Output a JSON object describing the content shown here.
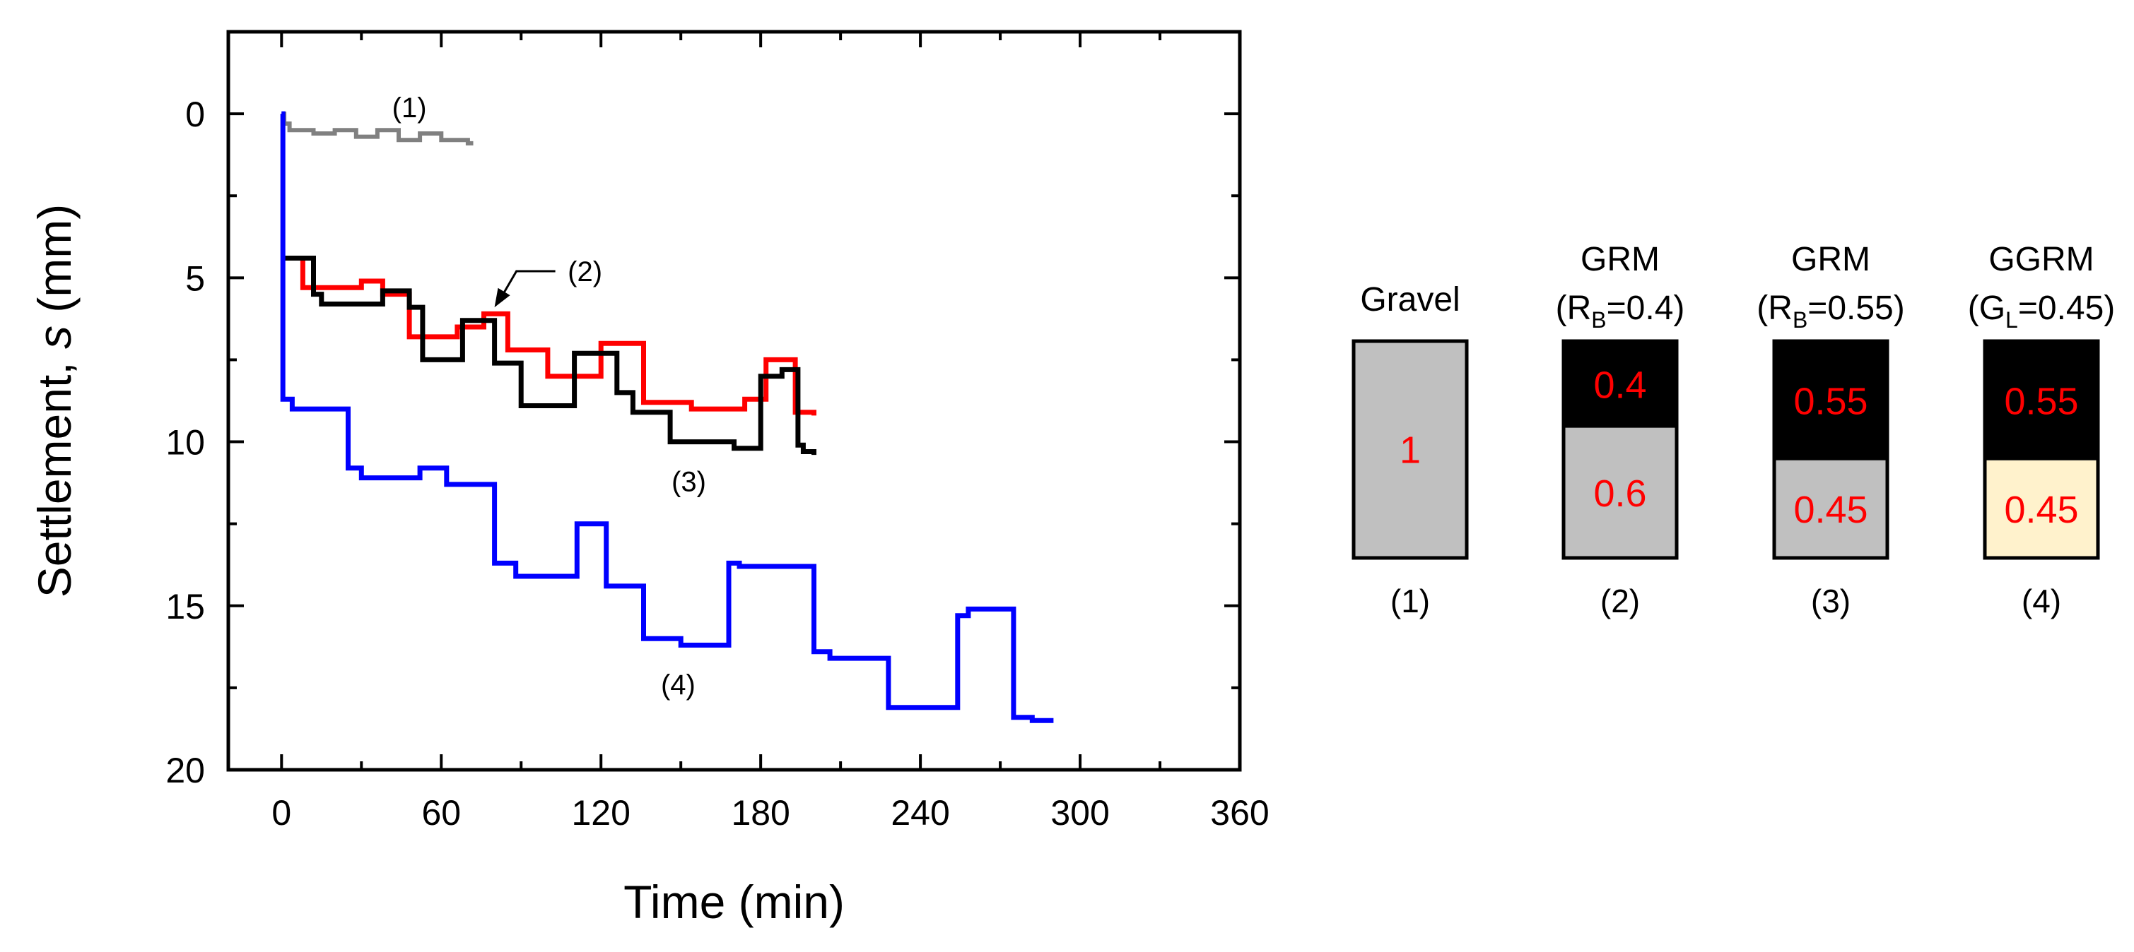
{
  "chart_data": {
    "type": "line",
    "title": "",
    "xlabel": "Time (min)",
    "ylabel": {
      "prefix": "Settlement, ",
      "italic": "s",
      "suffix": " (mm)"
    },
    "xlim": [
      -20,
      360
    ],
    "ylim": [
      -2.5,
      20
    ],
    "y_inverted": true,
    "xticks": [
      0,
      60,
      120,
      180,
      240,
      300,
      360
    ],
    "yticks": [
      0,
      5,
      10,
      15,
      20
    ],
    "series": [
      {
        "name": "(1)",
        "color": "#808080",
        "points": [
          [
            0,
            0
          ],
          [
            1,
            0
          ],
          [
            1,
            0.3
          ],
          [
            3,
            0.3
          ],
          [
            3,
            0.5
          ],
          [
            12,
            0.5
          ],
          [
            12,
            0.6
          ],
          [
            20,
            0.6
          ],
          [
            20,
            0.5
          ],
          [
            28,
            0.5
          ],
          [
            28,
            0.7
          ],
          [
            36,
            0.7
          ],
          [
            36,
            0.5
          ],
          [
            44,
            0.5
          ],
          [
            44,
            0.8
          ],
          [
            52,
            0.8
          ],
          [
            52,
            0.6
          ],
          [
            60,
            0.6
          ],
          [
            60,
            0.8
          ],
          [
            70,
            0.8
          ],
          [
            70,
            0.9
          ],
          [
            72,
            0.9
          ]
        ]
      },
      {
        "name": "(2)",
        "color": "#ff0000",
        "points": [
          [
            0,
            4.4
          ],
          [
            8,
            4.4
          ],
          [
            8,
            5.3
          ],
          [
            30,
            5.3
          ],
          [
            30,
            5.1
          ],
          [
            38,
            5.1
          ],
          [
            38,
            5.5
          ],
          [
            48,
            5.5
          ],
          [
            48,
            6.8
          ],
          [
            66,
            6.8
          ],
          [
            66,
            6.5
          ],
          [
            76,
            6.5
          ],
          [
            76,
            6.1
          ],
          [
            85,
            6.1
          ],
          [
            85,
            7.2
          ],
          [
            100,
            7.2
          ],
          [
            100,
            8.0
          ],
          [
            120,
            8.0
          ],
          [
            120,
            7.0
          ],
          [
            136,
            7.0
          ],
          [
            136,
            8.8
          ],
          [
            154,
            8.8
          ],
          [
            154,
            9.0
          ],
          [
            174,
            9.0
          ],
          [
            174,
            8.7
          ],
          [
            182,
            8.7
          ],
          [
            182,
            7.5
          ],
          [
            193,
            7.5
          ],
          [
            193,
            9.1
          ],
          [
            200,
            9.1
          ],
          [
            200,
            9.2
          ]
        ]
      },
      {
        "name": "(3)",
        "color": "#000000",
        "points": [
          [
            0,
            4.4
          ],
          [
            12,
            4.4
          ],
          [
            12,
            5.5
          ],
          [
            15,
            5.5
          ],
          [
            15,
            5.8
          ],
          [
            38,
            5.8
          ],
          [
            38,
            5.4
          ],
          [
            48,
            5.4
          ],
          [
            48,
            5.9
          ],
          [
            53,
            5.9
          ],
          [
            53,
            7.5
          ],
          [
            68,
            7.5
          ],
          [
            68,
            6.3
          ],
          [
            80,
            6.3
          ],
          [
            80,
            7.6
          ],
          [
            90,
            7.6
          ],
          [
            90,
            8.9
          ],
          [
            110,
            8.9
          ],
          [
            110,
            7.3
          ],
          [
            126,
            7.3
          ],
          [
            126,
            8.5
          ],
          [
            132,
            8.5
          ],
          [
            132,
            9.1
          ],
          [
            146,
            9.1
          ],
          [
            146,
            10.0
          ],
          [
            170,
            10.0
          ],
          [
            170,
            10.2
          ],
          [
            180,
            10.2
          ],
          [
            180,
            8.0
          ],
          [
            188,
            8.0
          ],
          [
            188,
            7.8
          ],
          [
            194,
            7.8
          ],
          [
            194,
            10.1
          ],
          [
            196,
            10.1
          ],
          [
            196,
            10.3
          ],
          [
            200,
            10.3
          ],
          [
            200,
            10.4
          ]
        ]
      },
      {
        "name": "(4)",
        "color": "#0000ff",
        "points": [
          [
            0,
            0
          ],
          [
            0.5,
            0
          ],
          [
            0.5,
            8.7
          ],
          [
            4,
            8.7
          ],
          [
            4,
            9.0
          ],
          [
            25,
            9.0
          ],
          [
            25,
            10.8
          ],
          [
            30,
            10.8
          ],
          [
            30,
            11.1
          ],
          [
            52,
            11.1
          ],
          [
            52,
            10.8
          ],
          [
            62,
            10.8
          ],
          [
            62,
            11.3
          ],
          [
            80,
            11.3
          ],
          [
            80,
            13.7
          ],
          [
            88,
            13.7
          ],
          [
            88,
            14.1
          ],
          [
            111,
            14.1
          ],
          [
            111,
            12.5
          ],
          [
            122,
            12.5
          ],
          [
            122,
            14.4
          ],
          [
            136,
            14.4
          ],
          [
            136,
            16.0
          ],
          [
            150,
            16.0
          ],
          [
            150,
            16.2
          ],
          [
            168,
            16.2
          ],
          [
            168,
            13.7
          ],
          [
            172,
            13.7
          ],
          [
            172,
            13.8
          ],
          [
            200,
            13.8
          ],
          [
            200,
            16.4
          ],
          [
            206,
            16.4
          ],
          [
            206,
            16.6
          ],
          [
            228,
            16.6
          ],
          [
            228,
            18.1
          ],
          [
            254,
            18.1
          ],
          [
            254,
            15.3
          ],
          [
            258,
            15.3
          ],
          [
            258,
            15.1
          ],
          [
            275,
            15.1
          ],
          [
            275,
            18.4
          ],
          [
            282,
            18.4
          ],
          [
            282,
            18.5
          ],
          [
            290,
            18.5
          ]
        ]
      }
    ],
    "annotations": [
      {
        "text": "(1)",
        "x": 48,
        "y": -0.2
      },
      {
        "text": "(2)",
        "x": 114,
        "y": 4.8,
        "arrow_to": [
          80,
          5.9
        ]
      },
      {
        "text": "(3)",
        "x": 153,
        "y": 11.2
      },
      {
        "text": "(4)",
        "x": 149,
        "y": 17.4
      }
    ]
  },
  "schematic": {
    "columns": [
      {
        "label": "(1)",
        "title_lines": [
          "Gravel"
        ],
        "frame_color": "#000000",
        "layers": [
          {
            "value": "1",
            "share": 1.0,
            "fill": "#c0c0c0",
            "text_color": "#ff0000"
          }
        ]
      },
      {
        "label": "(2)",
        "title_lines": [
          "GRM"
        ],
        "sub": {
          "pre": "(R",
          "subscript": "B",
          "post": "=0.4)"
        },
        "layers": [
          {
            "value": "0.4",
            "share": 0.4,
            "fill": "#000000",
            "text_color": "#ff0000"
          },
          {
            "value": "0.6",
            "share": 0.6,
            "fill": "#c0c0c0",
            "text_color": "#ff0000"
          }
        ]
      },
      {
        "label": "(3)",
        "title_lines": [
          "GRM"
        ],
        "sub": {
          "pre": "(R",
          "subscript": "B",
          "post": "=0.55)"
        },
        "layers": [
          {
            "value": "0.55",
            "share": 0.55,
            "fill": "#000000",
            "text_color": "#ff0000"
          },
          {
            "value": "0.45",
            "share": 0.45,
            "fill": "#c0c0c0",
            "text_color": "#ff0000"
          }
        ]
      },
      {
        "label": "(4)",
        "title_lines": [
          "GGRM"
        ],
        "sub": {
          "pre": "(G",
          "subscript": "L",
          "post": "=0.45)"
        },
        "layers": [
          {
            "value": "0.55",
            "share": 0.55,
            "fill": "#000000",
            "text_color": "#ff0000"
          },
          {
            "value": "0.45",
            "share": 0.45,
            "fill": "#fff2cc",
            "text_color": "#ff0000"
          }
        ]
      }
    ]
  }
}
